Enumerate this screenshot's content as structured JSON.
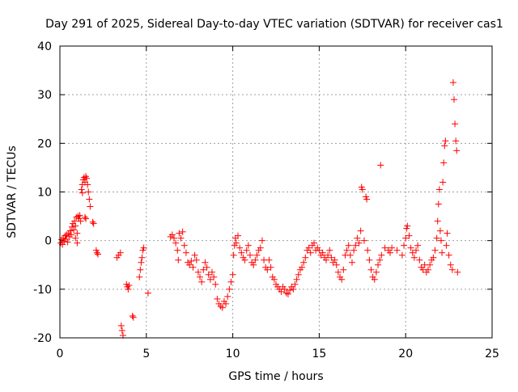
{
  "chart_data": {
    "type": "scatter",
    "title": "Day 291 of 2025, Sidereal Day-to-day VTEC variation (SDTVAR) for receiver cas1",
    "xlabel": "GPS time / hours",
    "ylabel": "SDTVAR / TECUs",
    "xlim": [
      0,
      25
    ],
    "ylim": [
      -20,
      40
    ],
    "xticks": [
      0,
      5,
      10,
      15,
      20,
      25
    ],
    "yticks": [
      -20,
      -10,
      0,
      10,
      20,
      30,
      40
    ],
    "xtick_labels": [
      "0",
      "5",
      "10",
      "15",
      "20",
      "25"
    ],
    "ytick_labels": [
      "-20",
      "-10",
      "0",
      "10",
      "20",
      "30",
      "40"
    ],
    "grid": true,
    "marker": "plus",
    "series": [
      {
        "name": "cas1",
        "color": "#ff0000",
        "points": [
          [
            0.05,
            -0.5
          ],
          [
            0.1,
            0.2
          ],
          [
            0.15,
            -0.8
          ],
          [
            0.2,
            0.5
          ],
          [
            0.25,
            -0.2
          ],
          [
            0.3,
            1.0
          ],
          [
            0.35,
            0.3
          ],
          [
            0.4,
            1.2
          ],
          [
            0.45,
            -0.3
          ],
          [
            0.5,
            1.5
          ],
          [
            0.55,
            0.8
          ],
          [
            0.6,
            2.0
          ],
          [
            0.65,
            1.2
          ],
          [
            0.7,
            2.8
          ],
          [
            0.75,
            3.5
          ],
          [
            0.8,
            2.2
          ],
          [
            0.85,
            4.0
          ],
          [
            0.9,
            3.0
          ],
          [
            0.95,
            4.8
          ],
          [
            1.0,
            1.5
          ],
          [
            0.9,
            0.5
          ],
          [
            1.0,
            -0.5
          ],
          [
            1.05,
            5.0
          ],
          [
            1.1,
            4.5
          ],
          [
            1.15,
            5.2
          ],
          [
            1.2,
            4.0
          ],
          [
            1.25,
            10.5
          ],
          [
            1.3,
            11.5
          ],
          [
            1.35,
            12.5
          ],
          [
            1.4,
            13.0
          ],
          [
            1.45,
            12.0
          ],
          [
            1.5,
            13.2
          ],
          [
            1.55,
            12.8
          ],
          [
            1.6,
            11.5
          ],
          [
            1.65,
            10.0
          ],
          [
            1.7,
            8.5
          ],
          [
            1.75,
            7.0
          ],
          [
            1.45,
            4.8
          ],
          [
            1.5,
            4.5
          ],
          [
            1.3,
            9.8
          ],
          [
            1.9,
            3.8
          ],
          [
            1.95,
            3.5
          ],
          [
            2.1,
            -2.0
          ],
          [
            2.15,
            -2.5
          ],
          [
            2.2,
            -2.8
          ],
          [
            3.3,
            -3.5
          ],
          [
            3.4,
            -3.0
          ],
          [
            3.5,
            -2.5
          ],
          [
            3.55,
            -17.5
          ],
          [
            3.6,
            -18.5
          ],
          [
            3.65,
            -19.5
          ],
          [
            3.85,
            -9.0
          ],
          [
            3.9,
            -9.5
          ],
          [
            3.95,
            -10.0
          ],
          [
            4.0,
            -9.2
          ],
          [
            4.2,
            -15.5
          ],
          [
            4.25,
            -15.8
          ],
          [
            4.6,
            -7.5
          ],
          [
            4.65,
            -6.0
          ],
          [
            4.7,
            -4.5
          ],
          [
            4.75,
            -3.5
          ],
          [
            4.8,
            -2.0
          ],
          [
            4.85,
            -1.5
          ],
          [
            5.1,
            -10.8
          ],
          [
            6.4,
            0.8
          ],
          [
            6.5,
            1.2
          ],
          [
            6.6,
            0.5
          ],
          [
            6.7,
            -0.5
          ],
          [
            6.8,
            -2.0
          ],
          [
            6.85,
            -4.0
          ],
          [
            6.9,
            1.5
          ],
          [
            7.0,
            0.5
          ],
          [
            7.1,
            1.8
          ],
          [
            7.2,
            -1.0
          ],
          [
            7.3,
            -2.5
          ],
          [
            7.4,
            -4.5
          ],
          [
            7.5,
            -5.0
          ],
          [
            7.6,
            -4.2
          ],
          [
            7.7,
            -5.5
          ],
          [
            7.8,
            -3.0
          ],
          [
            7.9,
            -4.0
          ],
          [
            8.0,
            -6.5
          ],
          [
            8.1,
            -7.5
          ],
          [
            8.2,
            -8.5
          ],
          [
            8.3,
            -6.0
          ],
          [
            8.4,
            -4.5
          ],
          [
            8.5,
            -5.5
          ],
          [
            8.6,
            -7.0
          ],
          [
            8.7,
            -8.0
          ],
          [
            8.8,
            -6.5
          ],
          [
            8.9,
            -7.5
          ],
          [
            9.0,
            -9.0
          ],
          [
            9.1,
            -12.0
          ],
          [
            9.2,
            -13.0
          ],
          [
            9.3,
            -13.5
          ],
          [
            9.4,
            -13.8
          ],
          [
            9.5,
            -12.5
          ],
          [
            9.6,
            -13.0
          ],
          [
            9.7,
            -11.5
          ],
          [
            9.8,
            -10.0
          ],
          [
            9.9,
            -8.5
          ],
          [
            10.0,
            -7.0
          ],
          [
            10.05,
            -3.0
          ],
          [
            10.1,
            -1.0
          ],
          [
            10.15,
            0.5
          ],
          [
            10.2,
            -0.5
          ],
          [
            10.3,
            1.0
          ],
          [
            10.4,
            -1.5
          ],
          [
            10.5,
            -2.5
          ],
          [
            10.6,
            -3.5
          ],
          [
            10.7,
            -4.0
          ],
          [
            10.8,
            -2.0
          ],
          [
            10.9,
            -1.0
          ],
          [
            11.0,
            -3.0
          ],
          [
            11.1,
            -4.5
          ],
          [
            11.2,
            -5.0
          ],
          [
            11.3,
            -4.0
          ],
          [
            11.4,
            -3.0
          ],
          [
            11.5,
            -2.0
          ],
          [
            11.6,
            -1.5
          ],
          [
            11.7,
            0.0
          ],
          [
            11.8,
            -4.0
          ],
          [
            11.9,
            -5.5
          ],
          [
            12.0,
            -6.0
          ],
          [
            12.1,
            -4.0
          ],
          [
            12.2,
            -5.5
          ],
          [
            12.3,
            -7.5
          ],
          [
            12.4,
            -8.0
          ],
          [
            12.5,
            -9.0
          ],
          [
            12.6,
            -9.5
          ],
          [
            12.7,
            -10.0
          ],
          [
            12.8,
            -10.5
          ],
          [
            12.9,
            -9.5
          ],
          [
            13.0,
            -10.0
          ],
          [
            13.1,
            -10.8
          ],
          [
            13.2,
            -11.0
          ],
          [
            13.3,
            -10.2
          ],
          [
            13.4,
            -9.5
          ],
          [
            13.5,
            -10.0
          ],
          [
            13.6,
            -9.0
          ],
          [
            13.7,
            -8.0
          ],
          [
            13.8,
            -7.0
          ],
          [
            13.9,
            -6.0
          ],
          [
            14.0,
            -5.5
          ],
          [
            14.1,
            -4.5
          ],
          [
            14.2,
            -3.5
          ],
          [
            14.3,
            -2.0
          ],
          [
            14.4,
            -1.5
          ],
          [
            14.5,
            -2.5
          ],
          [
            14.6,
            -1.0
          ],
          [
            14.7,
            -0.5
          ],
          [
            14.8,
            -2.0
          ],
          [
            14.9,
            -1.5
          ],
          [
            15.0,
            -2.0
          ],
          [
            15.1,
            -3.0
          ],
          [
            15.2,
            -2.5
          ],
          [
            15.3,
            -3.5
          ],
          [
            15.4,
            -4.0
          ],
          [
            15.5,
            -3.0
          ],
          [
            15.6,
            -2.0
          ],
          [
            15.7,
            -3.5
          ],
          [
            15.8,
            -4.5
          ],
          [
            15.9,
            -4.0
          ],
          [
            16.0,
            -5.0
          ],
          [
            16.1,
            -6.5
          ],
          [
            16.2,
            -7.5
          ],
          [
            16.3,
            -8.0
          ],
          [
            16.4,
            -6.0
          ],
          [
            16.5,
            -3.0
          ],
          [
            16.6,
            -2.0
          ],
          [
            16.7,
            -1.0
          ],
          [
            16.8,
            -3.0
          ],
          [
            16.9,
            -4.5
          ],
          [
            17.0,
            -2.0
          ],
          [
            17.1,
            -1.0
          ],
          [
            17.2,
            0.5
          ],
          [
            17.3,
            -0.5
          ],
          [
            17.4,
            2.0
          ],
          [
            17.45,
            11.0
          ],
          [
            17.5,
            10.5
          ],
          [
            17.6,
            0.0
          ],
          [
            17.7,
            9.0
          ],
          [
            17.75,
            8.5
          ],
          [
            17.8,
            -2.0
          ],
          [
            17.9,
            -4.0
          ],
          [
            18.0,
            -6.0
          ],
          [
            18.1,
            -7.5
          ],
          [
            18.2,
            -8.0
          ],
          [
            18.3,
            -6.5
          ],
          [
            18.4,
            -5.0
          ],
          [
            18.5,
            -4.0
          ],
          [
            18.6,
            -3.0
          ],
          [
            18.55,
            15.5
          ],
          [
            18.8,
            -1.5
          ],
          [
            19.0,
            -2.0
          ],
          [
            19.1,
            -2.5
          ],
          [
            19.2,
            -1.5
          ],
          [
            19.5,
            -2.0
          ],
          [
            19.8,
            -3.0
          ],
          [
            19.9,
            -1.0
          ],
          [
            20.0,
            0.5
          ],
          [
            20.05,
            2.5
          ],
          [
            20.1,
            3.0
          ],
          [
            20.2,
            1.0
          ],
          [
            20.3,
            -1.5
          ],
          [
            20.4,
            -2.5
          ],
          [
            20.5,
            -3.5
          ],
          [
            20.6,
            -2.0
          ],
          [
            20.7,
            -1.0
          ],
          [
            20.8,
            -4.0
          ],
          [
            20.9,
            -5.5
          ],
          [
            21.0,
            -6.0
          ],
          [
            21.1,
            -5.0
          ],
          [
            21.2,
            -6.5
          ],
          [
            21.3,
            -6.0
          ],
          [
            21.4,
            -5.0
          ],
          [
            21.5,
            -4.0
          ],
          [
            21.6,
            -3.5
          ],
          [
            21.7,
            -2.0
          ],
          [
            21.8,
            0.5
          ],
          [
            21.85,
            4.0
          ],
          [
            21.9,
            7.5
          ],
          [
            21.95,
            10.5
          ],
          [
            22.0,
            2.0
          ],
          [
            22.05,
            0.0
          ],
          [
            22.1,
            -2.5
          ],
          [
            22.15,
            12.0
          ],
          [
            22.2,
            16.0
          ],
          [
            22.25,
            19.5
          ],
          [
            22.3,
            20.5
          ],
          [
            22.35,
            -1.0
          ],
          [
            22.4,
            1.5
          ],
          [
            22.5,
            -3.0
          ],
          [
            22.6,
            -5.0
          ],
          [
            22.7,
            -6.0
          ],
          [
            22.75,
            32.5
          ],
          [
            22.8,
            29.0
          ],
          [
            22.85,
            24.0
          ],
          [
            22.9,
            20.5
          ],
          [
            22.95,
            18.5
          ],
          [
            23.0,
            -6.5
          ]
        ]
      }
    ]
  }
}
